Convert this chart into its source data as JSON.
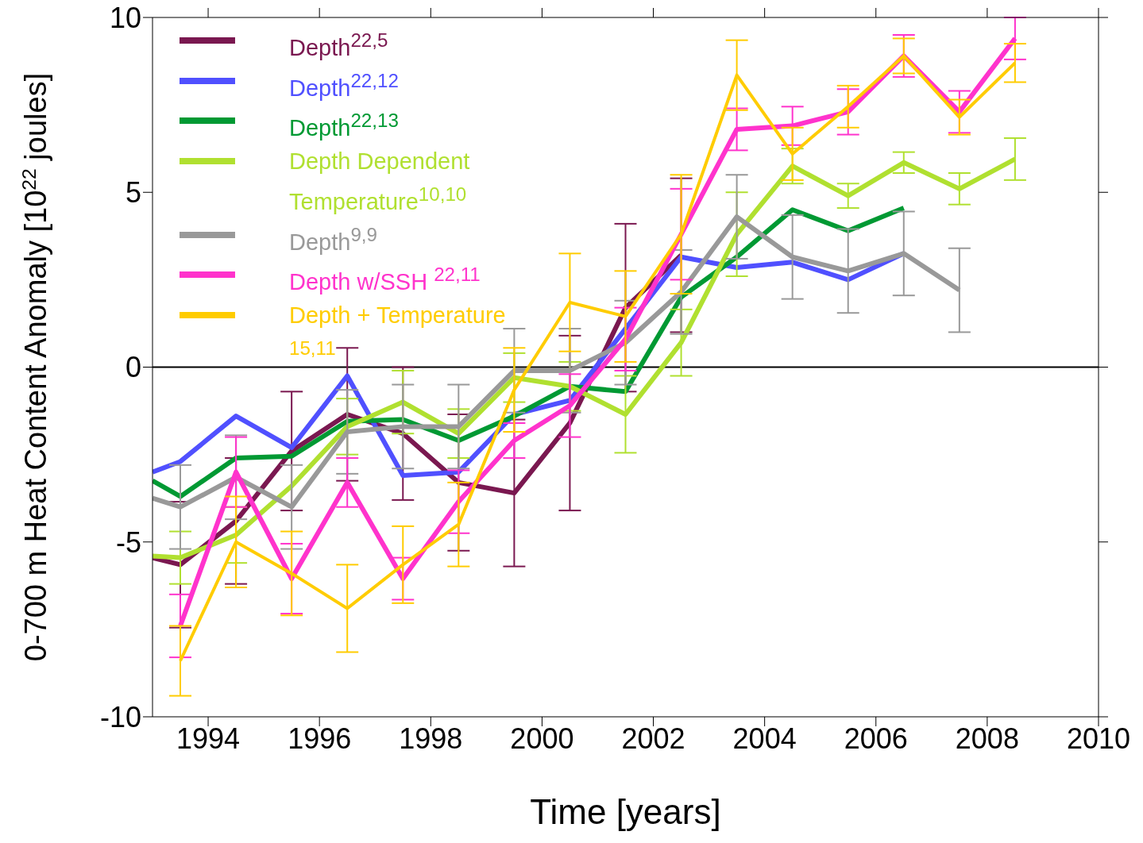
{
  "chart_data": {
    "type": "line",
    "xlabel": "Time [years]",
    "ylabel": "0-700 m Heat Content Anomaly [10$^{22}$ joules]",
    "x": [
      1993,
      1993.5,
      1994.5,
      1995.5,
      1996.5,
      1997.5,
      1998.5,
      1999.5,
      2000.5,
      2001.5,
      2002.5,
      2003.5,
      2004.5,
      2005.5,
      2006.5,
      2007.5,
      2008.5
    ],
    "series": [
      {
        "name": "Depth$^{22,5}$",
        "color": "#7a1850",
        "values": [
          -5.45,
          -5.65,
          -4.4,
          -2.4,
          -1.35,
          -1.9,
          -3.3,
          -3.6,
          -1.6,
          1.7,
          3.2,
          null,
          null,
          null,
          null,
          null,
          null
        ],
        "errors": [
          null,
          1.8,
          1.8,
          1.7,
          1.9,
          1.9,
          1.95,
          2.1,
          2.5,
          2.4,
          2.2,
          null,
          null,
          null,
          null,
          null,
          null
        ]
      },
      {
        "name": "Depth$^{22,12}$",
        "color": "#5050ff",
        "values": [
          -3.0,
          -2.7,
          -1.4,
          -2.3,
          -0.25,
          -3.1,
          -3.0,
          -1.35,
          -0.95,
          1.1,
          3.15,
          2.85,
          3.0,
          2.5,
          3.25,
          null,
          null
        ]
      },
      {
        "name": "Depth$^{22,13}$",
        "color": "#009933",
        "values": [
          -3.25,
          -3.7,
          -2.6,
          -2.55,
          -1.55,
          -1.5,
          -2.1,
          -1.4,
          -0.55,
          -0.7,
          2.0,
          3.15,
          4.5,
          3.9,
          4.55,
          null,
          null
        ]
      },
      {
        "name": "Depth Dependent Temperature$^{10,10}$",
        "color": "#b0e030",
        "values": [
          -5.4,
          -5.45,
          -4.8,
          -3.4,
          -1.7,
          -1.0,
          -1.9,
          -0.3,
          -0.55,
          -1.35,
          0.7,
          3.8,
          5.75,
          4.9,
          5.85,
          5.1,
          5.95
        ],
        "errors": [
          null,
          0.75,
          0.8,
          null,
          0.8,
          0.9,
          0.7,
          0.7,
          0.7,
          1.1,
          0.95,
          1.2,
          0.5,
          0.35,
          0.3,
          0.45,
          0.6
        ]
      },
      {
        "name": "Depth$^{9,9}$",
        "color": "#999999",
        "values": [
          -3.75,
          -4.0,
          -3.15,
          -4.0,
          -1.85,
          -1.7,
          -1.7,
          -0.1,
          -0.1,
          0.7,
          2.15,
          4.3,
          3.15,
          2.75,
          3.25,
          2.2,
          null
        ],
        "errors": [
          null,
          1.2,
          1.2,
          1.2,
          1.2,
          1.2,
          1.2,
          1.2,
          1.2,
          1.2,
          1.2,
          1.2,
          1.2,
          1.2,
          1.2,
          1.2,
          null
        ]
      },
      {
        "name": "Depth w/SSH $^{22,11}$",
        "color": "#ff33cc",
        "values": [
          null,
          -7.4,
          -3.0,
          -6.05,
          -3.3,
          -6.05,
          -3.85,
          -2.1,
          -1.1,
          0.8,
          3.8,
          6.8,
          6.9,
          7.3,
          8.9,
          7.3,
          9.4
        ],
        "errors": [
          null,
          0.9,
          1.0,
          1.0,
          0.7,
          0.6,
          0.9,
          0.5,
          0.9,
          0.9,
          1.3,
          0.6,
          0.55,
          0.65,
          0.6,
          0.6,
          0.6
        ]
      },
      {
        "name": "Depth + Temperature $^{15,11}$",
        "color": "#ffcc00",
        "values": [
          null,
          -8.4,
          -5.0,
          -5.9,
          -6.9,
          -5.65,
          -4.5,
          -0.65,
          1.85,
          1.45,
          3.8,
          8.35,
          6.1,
          7.45,
          8.9,
          7.15,
          8.7
        ],
        "errors": [
          null,
          1.0,
          1.3,
          1.2,
          1.25,
          1.1,
          1.2,
          1.2,
          1.4,
          1.3,
          1.7,
          1.0,
          0.75,
          0.6,
          0.5,
          0.5,
          0.55
        ]
      }
    ],
    "xlim": [
      1993,
      2010
    ],
    "xticks": [
      1994,
      1996,
      1998,
      2000,
      2002,
      2004,
      2006,
      2008,
      2010
    ],
    "ylim": [
      -10,
      10
    ],
    "yticks": [
      -10,
      -5,
      0,
      5,
      10
    ],
    "ref_lines": [
      {
        "axis": "y",
        "value": 0,
        "color": "#000000"
      }
    ],
    "grid": false,
    "legend": "top left",
    "marker": "none",
    "line_style": "solid"
  }
}
